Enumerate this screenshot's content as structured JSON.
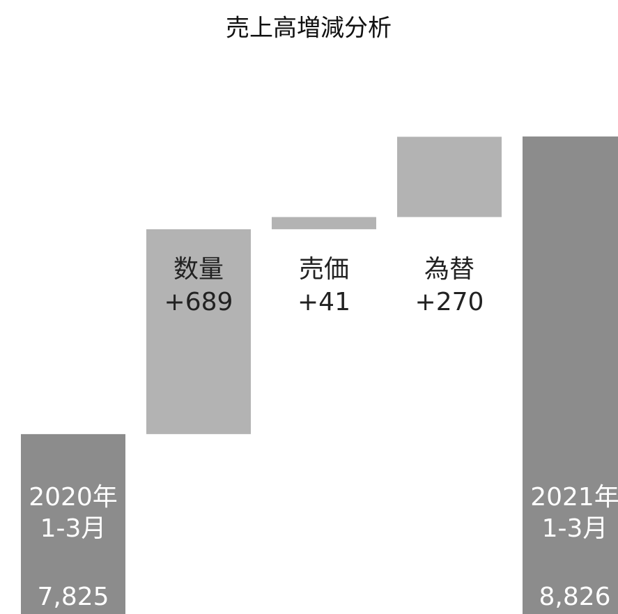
{
  "chart_data": {
    "type": "waterfall",
    "title": "売上高増減分析",
    "categories": [
      [
        "2020年",
        "1-3月"
      ],
      [
        "数量"
      ],
      [
        "売価"
      ],
      [
        "為替"
      ],
      [
        "2021年",
        "1-3月"
      ]
    ],
    "values": [
      7825,
      689,
      41,
      270,
      8826
    ],
    "value_labels": [
      "7,825",
      "+689",
      "+41",
      "+270",
      "8,826"
    ],
    "totals": [
      true,
      false,
      false,
      false,
      true
    ],
    "colors": [
      "#8c8c8c",
      "#b3b3b3",
      "#b3b3b3",
      "#b3b3b3",
      "#8c8c8c"
    ],
    "ylim": [
      7220,
      9285
    ]
  }
}
